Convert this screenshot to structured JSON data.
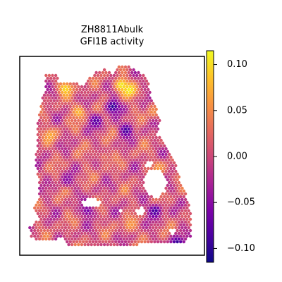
{
  "chart_data": {
    "type": "heatmap",
    "title": "ZH8811Abulk",
    "subtitle": "GFI1B activity",
    "xlabel": "",
    "ylabel": "",
    "grid": false,
    "colormap": "plasma",
    "colorbar": {
      "range": [
        -0.115,
        0.115
      ],
      "ticks": [
        0.1,
        0.05,
        0.0,
        -0.05,
        -0.1
      ],
      "tick_labels": [
        "0.10",
        "0.05",
        "0.00",
        "−0.05",
        "−0.10"
      ]
    },
    "hotspots": [
      {
        "x": 0.22,
        "y": 0.12,
        "value": 0.1
      },
      {
        "x": 0.55,
        "y": 0.1,
        "value": 0.11
      },
      {
        "x": 0.6,
        "y": 0.13,
        "value": 0.11
      },
      {
        "x": 0.3,
        "y": 0.25,
        "value": 0.08
      },
      {
        "x": 0.13,
        "y": 0.38,
        "value": 0.07
      },
      {
        "x": 0.74,
        "y": 0.25,
        "value": 0.05
      },
      {
        "x": 0.77,
        "y": 0.56,
        "value": 0.06
      },
      {
        "x": 0.6,
        "y": 0.88,
        "value": 0.06
      },
      {
        "x": 0.9,
        "y": 0.62,
        "value": 0.04
      },
      {
        "x": 0.45,
        "y": 0.5,
        "value": 0.03
      },
      {
        "x": 0.5,
        "y": 0.22,
        "value": -0.1
      },
      {
        "x": 0.58,
        "y": 0.35,
        "value": -0.09
      },
      {
        "x": 0.4,
        "y": 0.3,
        "value": -0.08
      },
      {
        "x": 0.75,
        "y": 0.8,
        "value": -0.09
      },
      {
        "x": 0.35,
        "y": 0.8,
        "value": -0.06
      },
      {
        "x": 0.23,
        "y": 0.63,
        "value": -0.05
      },
      {
        "x": 0.88,
        "y": 0.98,
        "value": -0.1
      }
    ]
  }
}
